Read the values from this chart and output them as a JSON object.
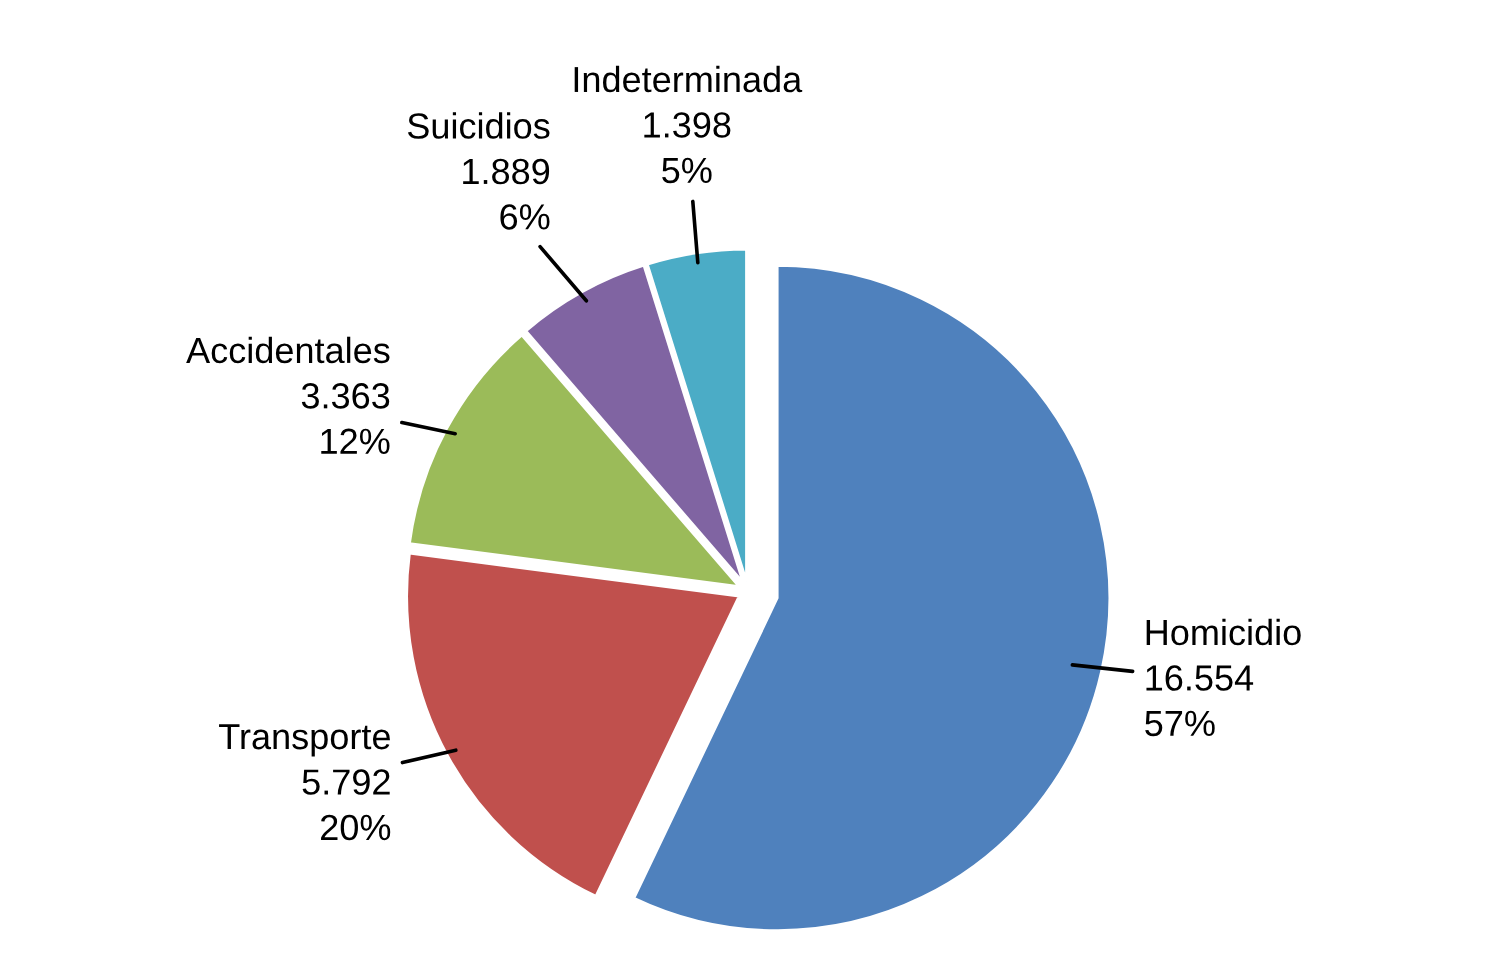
{
  "chart_data": {
    "type": "pie",
    "categories": [
      "Homicidio",
      "Transporte",
      "Accidentales",
      "Suicidios",
      "Indeterminada"
    ],
    "values": [
      16554,
      5792,
      3363,
      1889,
      1398
    ],
    "value_labels": [
      "16.554\n57%",
      "5.792\n20%",
      "3.363\n12%",
      "1.889\n6%",
      "1.398\n5%"
    ],
    "colors": [
      "#4f81bd",
      "#c0504d",
      "#9bbb59",
      "#8064a2",
      "#4bacc6"
    ],
    "legend": false
  }
}
